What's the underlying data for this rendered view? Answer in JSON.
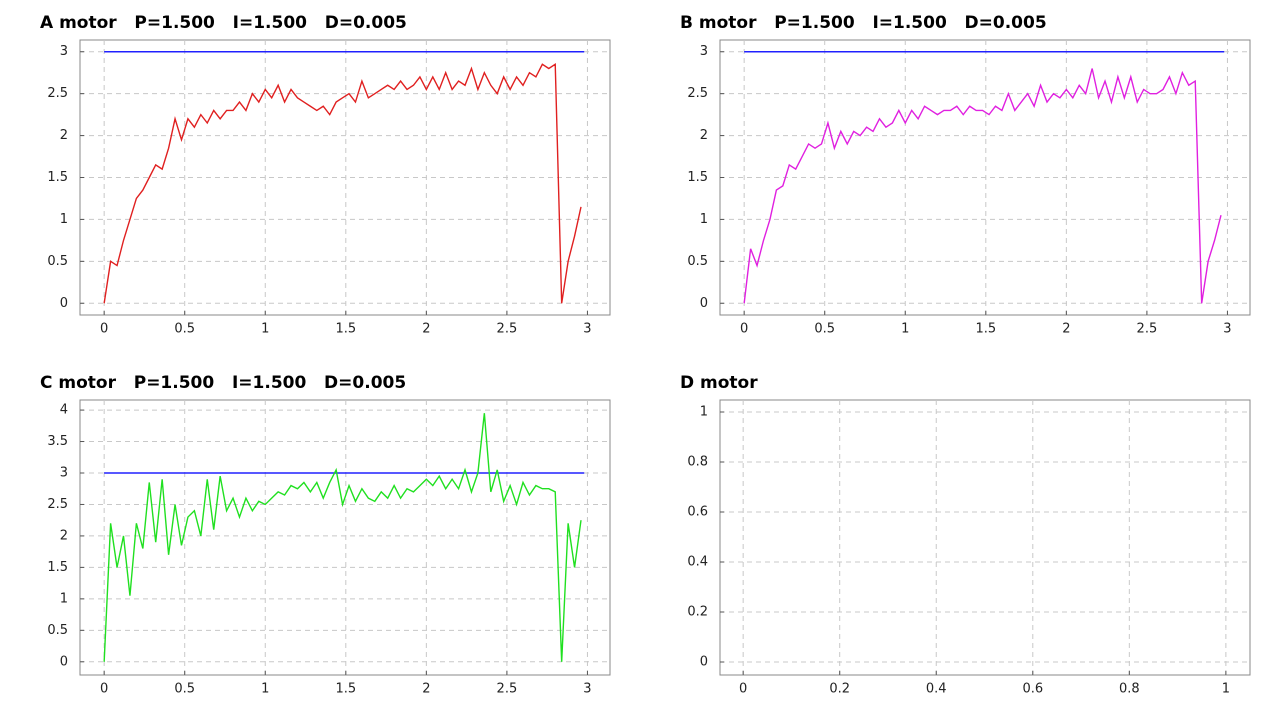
{
  "chart_data": [
    {
      "type": "line",
      "title": "A motor   P=1.500   I=1.500   D=0.005",
      "x": [
        0,
        0.04,
        0.08,
        0.12,
        0.16,
        0.2,
        0.24,
        0.28,
        0.32,
        0.36,
        0.4,
        0.44,
        0.48,
        0.52,
        0.56,
        0.6,
        0.64,
        0.68,
        0.72,
        0.76,
        0.8,
        0.84,
        0.88,
        0.92,
        0.96,
        1,
        1.04,
        1.08,
        1.12,
        1.16,
        1.2,
        1.24,
        1.28,
        1.32,
        1.36,
        1.4,
        1.44,
        1.48,
        1.52,
        1.56,
        1.6,
        1.64,
        1.68,
        1.72,
        1.76,
        1.8,
        1.84,
        1.88,
        1.92,
        1.96,
        2,
        2.04,
        2.08,
        2.12,
        2.16,
        2.2,
        2.24,
        2.28,
        2.32,
        2.36,
        2.4,
        2.44,
        2.48,
        2.52,
        2.56,
        2.6,
        2.64,
        2.68,
        2.72,
        2.76,
        2.8,
        2.84,
        2.88,
        2.92,
        2.96
      ],
      "series": [
        {
          "color": "#2020ff",
          "x": [
            0,
            2.98
          ],
          "values": [
            3,
            3
          ]
        },
        {
          "color": "#e02020",
          "values": [
            0,
            0.5,
            0.45,
            0.75,
            1.0,
            1.25,
            1.35,
            1.5,
            1.65,
            1.6,
            1.85,
            2.2,
            1.95,
            2.2,
            2.1,
            2.25,
            2.15,
            2.3,
            2.2,
            2.3,
            2.3,
            2.4,
            2.3,
            2.5,
            2.4,
            2.55,
            2.45,
            2.6,
            2.4,
            2.55,
            2.45,
            2.4,
            2.35,
            2.3,
            2.35,
            2.25,
            2.4,
            2.45,
            2.5,
            2.4,
            2.65,
            2.45,
            2.5,
            2.55,
            2.6,
            2.55,
            2.65,
            2.55,
            2.6,
            2.7,
            2.55,
            2.7,
            2.55,
            2.75,
            2.55,
            2.65,
            2.6,
            2.8,
            2.55,
            2.75,
            2.6,
            2.5,
            2.7,
            2.55,
            2.7,
            2.6,
            2.75,
            2.7,
            2.85,
            2.8,
            2.85,
            0,
            0.5,
            0.8,
            1.15
          ]
        }
      ],
      "xlim": [
        -0.15,
        3.14
      ],
      "ylim": [
        -0.14,
        3.14
      ],
      "xticks": [
        0,
        0.5,
        1,
        1.5,
        2,
        2.5,
        3
      ],
      "yticks": [
        0,
        0.5,
        1,
        1.5,
        2,
        2.5,
        3
      ],
      "grid": true
    },
    {
      "type": "line",
      "title": "B motor   P=1.500   I=1.500   D=0.005",
      "x": [
        0,
        0.04,
        0.08,
        0.12,
        0.16,
        0.2,
        0.24,
        0.28,
        0.32,
        0.36,
        0.4,
        0.44,
        0.48,
        0.52,
        0.56,
        0.6,
        0.64,
        0.68,
        0.72,
        0.76,
        0.8,
        0.84,
        0.88,
        0.92,
        0.96,
        1,
        1.04,
        1.08,
        1.12,
        1.16,
        1.2,
        1.24,
        1.28,
        1.32,
        1.36,
        1.4,
        1.44,
        1.48,
        1.52,
        1.56,
        1.6,
        1.64,
        1.68,
        1.72,
        1.76,
        1.8,
        1.84,
        1.88,
        1.92,
        1.96,
        2,
        2.04,
        2.08,
        2.12,
        2.16,
        2.2,
        2.24,
        2.28,
        2.32,
        2.36,
        2.4,
        2.44,
        2.48,
        2.52,
        2.56,
        2.6,
        2.64,
        2.68,
        2.72,
        2.76,
        2.8,
        2.84,
        2.88,
        2.92,
        2.96
      ],
      "series": [
        {
          "color": "#2020ff",
          "x": [
            0,
            2.98
          ],
          "values": [
            3,
            3
          ]
        },
        {
          "color": "#e020e0",
          "values": [
            0,
            0.65,
            0.45,
            0.75,
            1.0,
            1.35,
            1.4,
            1.65,
            1.6,
            1.75,
            1.9,
            1.85,
            1.9,
            2.15,
            1.85,
            2.05,
            1.9,
            2.05,
            2.0,
            2.1,
            2.05,
            2.2,
            2.1,
            2.15,
            2.3,
            2.15,
            2.3,
            2.2,
            2.35,
            2.3,
            2.25,
            2.3,
            2.3,
            2.35,
            2.25,
            2.35,
            2.3,
            2.3,
            2.25,
            2.35,
            2.3,
            2.5,
            2.3,
            2.4,
            2.5,
            2.35,
            2.6,
            2.4,
            2.5,
            2.45,
            2.55,
            2.45,
            2.6,
            2.5,
            2.8,
            2.45,
            2.65,
            2.4,
            2.7,
            2.45,
            2.7,
            2.4,
            2.55,
            2.5,
            2.5,
            2.55,
            2.7,
            2.5,
            2.75,
            2.6,
            2.65,
            0,
            0.5,
            0.75,
            1.05
          ]
        }
      ],
      "xlim": [
        -0.15,
        3.14
      ],
      "ylim": [
        -0.14,
        3.14
      ],
      "xticks": [
        0,
        0.5,
        1,
        1.5,
        2,
        2.5,
        3
      ],
      "yticks": [
        0,
        0.5,
        1,
        1.5,
        2,
        2.5,
        3
      ],
      "grid": true
    },
    {
      "type": "line",
      "title": "C motor   P=1.500   I=1.500   D=0.005",
      "x": [
        0,
        0.04,
        0.08,
        0.12,
        0.16,
        0.2,
        0.24,
        0.28,
        0.32,
        0.36,
        0.4,
        0.44,
        0.48,
        0.52,
        0.56,
        0.6,
        0.64,
        0.68,
        0.72,
        0.76,
        0.8,
        0.84,
        0.88,
        0.92,
        0.96,
        1,
        1.04,
        1.08,
        1.12,
        1.16,
        1.2,
        1.24,
        1.28,
        1.32,
        1.36,
        1.4,
        1.44,
        1.48,
        1.52,
        1.56,
        1.6,
        1.64,
        1.68,
        1.72,
        1.76,
        1.8,
        1.84,
        1.88,
        1.92,
        1.96,
        2,
        2.04,
        2.08,
        2.12,
        2.16,
        2.2,
        2.24,
        2.28,
        2.32,
        2.36,
        2.4,
        2.44,
        2.48,
        2.52,
        2.56,
        2.6,
        2.64,
        2.68,
        2.72,
        2.76,
        2.8,
        2.84,
        2.88,
        2.92,
        2.96
      ],
      "series": [
        {
          "color": "#2020ff",
          "x": [
            0,
            2.98
          ],
          "values": [
            3,
            3
          ]
        },
        {
          "color": "#20e020",
          "values": [
            0,
            2.2,
            1.5,
            2.0,
            1.05,
            2.2,
            1.8,
            2.85,
            1.9,
            2.9,
            1.7,
            2.5,
            1.85,
            2.3,
            2.4,
            2.0,
            2.9,
            2.1,
            2.95,
            2.4,
            2.6,
            2.3,
            2.6,
            2.4,
            2.55,
            2.5,
            2.6,
            2.7,
            2.65,
            2.8,
            2.75,
            2.85,
            2.7,
            2.85,
            2.6,
            2.85,
            3.05,
            2.5,
            2.8,
            2.55,
            2.75,
            2.6,
            2.55,
            2.7,
            2.6,
            2.8,
            2.6,
            2.75,
            2.7,
            2.8,
            2.9,
            2.8,
            2.95,
            2.75,
            2.9,
            2.75,
            3.05,
            2.7,
            3.0,
            3.95,
            2.7,
            3.05,
            2.55,
            2.8,
            2.5,
            2.85,
            2.65,
            2.8,
            2.75,
            2.75,
            2.7,
            0,
            2.2,
            1.5,
            2.25
          ]
        }
      ],
      "xlim": [
        -0.15,
        3.14
      ],
      "ylim": [
        -0.21,
        4.16
      ],
      "xticks": [
        0,
        0.5,
        1,
        1.5,
        2,
        2.5,
        3
      ],
      "yticks": [
        0,
        0.5,
        1,
        1.5,
        2,
        2.5,
        3,
        3.5,
        4
      ],
      "grid": true
    },
    {
      "type": "line",
      "title": "D motor",
      "series": [],
      "xlim": [
        -0.048,
        1.05
      ],
      "ylim": [
        -0.052,
        1.048
      ],
      "xticks": [
        0,
        0.2,
        0.4,
        0.6,
        0.8,
        1
      ],
      "yticks": [
        0,
        0.2,
        0.4,
        0.6,
        0.8,
        1
      ],
      "grid": true
    }
  ]
}
